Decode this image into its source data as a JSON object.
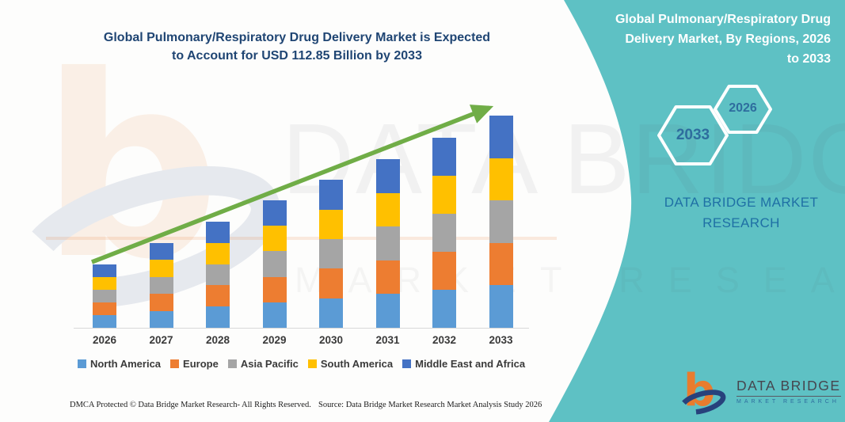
{
  "left": {
    "title_line1": "Global Pulmonary/Respiratory Drug Delivery Market is Expected",
    "title_line2": "to Account for USD 112.85 Billion by 2033",
    "footer_left": "DMCA Protected © Data Bridge Market Research-  All Rights Reserved.",
    "footer_right": "Source: Data Bridge Market Research  Market Analysis Study 2026"
  },
  "right_panel": {
    "bg_color": "#5EC1C4",
    "title_lines": [
      "Global Pulmonary/Respiratory Drug",
      "Delivery Market, By Regions, 2026",
      "to 2033"
    ],
    "hexagons": [
      {
        "label": "2033"
      },
      {
        "label": "2026"
      }
    ],
    "brand_text": "DATA BRIDGE MARKET RESEARCH",
    "logo": {
      "name": "DATA BRIDGE",
      "sub": "MARKET RESEARCH"
    }
  },
  "watermark": {
    "line1": "DATA BRIDGE",
    "line2": "MARKET RESEARCH"
  },
  "icons": {
    "trend_arrow": "green-upward-growth-arrow",
    "hexagon_badges": "white-outline-hexagons",
    "logo_mark": "orange-b-with-blue-swoosh"
  },
  "colors": {
    "accent_teal": "#5EC1C4",
    "title_navy": "#1F4573",
    "arrow_green": "#70AD47",
    "brand_blue": "#1F70A5",
    "logo_orange": "#E87C2E",
    "logo_navy": "#27427C"
  },
  "chart_data": {
    "type": "bar",
    "stacked": true,
    "title": "Global Pulmonary/Respiratory Drug Delivery Market, By Regions, 2026 to 2033",
    "subtitle": "Global Pulmonary/Respiratory Drug Delivery Market is Expected to Account for USD 112.85 Billion by 2033",
    "unit": "USD Billion",
    "categories": [
      "2026",
      "2027",
      "2028",
      "2029",
      "2030",
      "2031",
      "2032",
      "2033"
    ],
    "series": [
      {
        "name": "North America",
        "color": "#5B9BD5",
        "values": [
          6.74,
          9.02,
          11.28,
          13.56,
          15.74,
          17.94,
          20.22,
          22.57
        ]
      },
      {
        "name": "Europe",
        "color": "#ED7D31",
        "values": [
          6.74,
          9.02,
          11.28,
          13.56,
          15.74,
          17.94,
          20.22,
          22.57
        ]
      },
      {
        "name": "Asia Pacific",
        "color": "#A5A5A5",
        "values": [
          6.74,
          9.02,
          11.28,
          13.56,
          15.74,
          17.94,
          20.22,
          22.57
        ]
      },
      {
        "name": "South America",
        "color": "#FFC000",
        "values": [
          6.74,
          9.02,
          11.28,
          13.56,
          15.74,
          17.94,
          20.22,
          22.57
        ]
      },
      {
        "name": "Middle East and Africa",
        "color": "#4472C4",
        "values": [
          6.74,
          9.02,
          11.28,
          13.56,
          15.74,
          17.94,
          20.22,
          22.57
        ]
      }
    ],
    "totals": [
      33.7,
      45.1,
      56.4,
      67.8,
      78.7,
      89.7,
      101.1,
      112.85
    ],
    "xlabel": "",
    "ylabel": "",
    "ylim": [
      0,
      125
    ],
    "y_axis_visible": false,
    "gridlines": false,
    "legend_position": "bottom",
    "trend_arrow": true,
    "trend_arrow_color": "#70AD47"
  }
}
